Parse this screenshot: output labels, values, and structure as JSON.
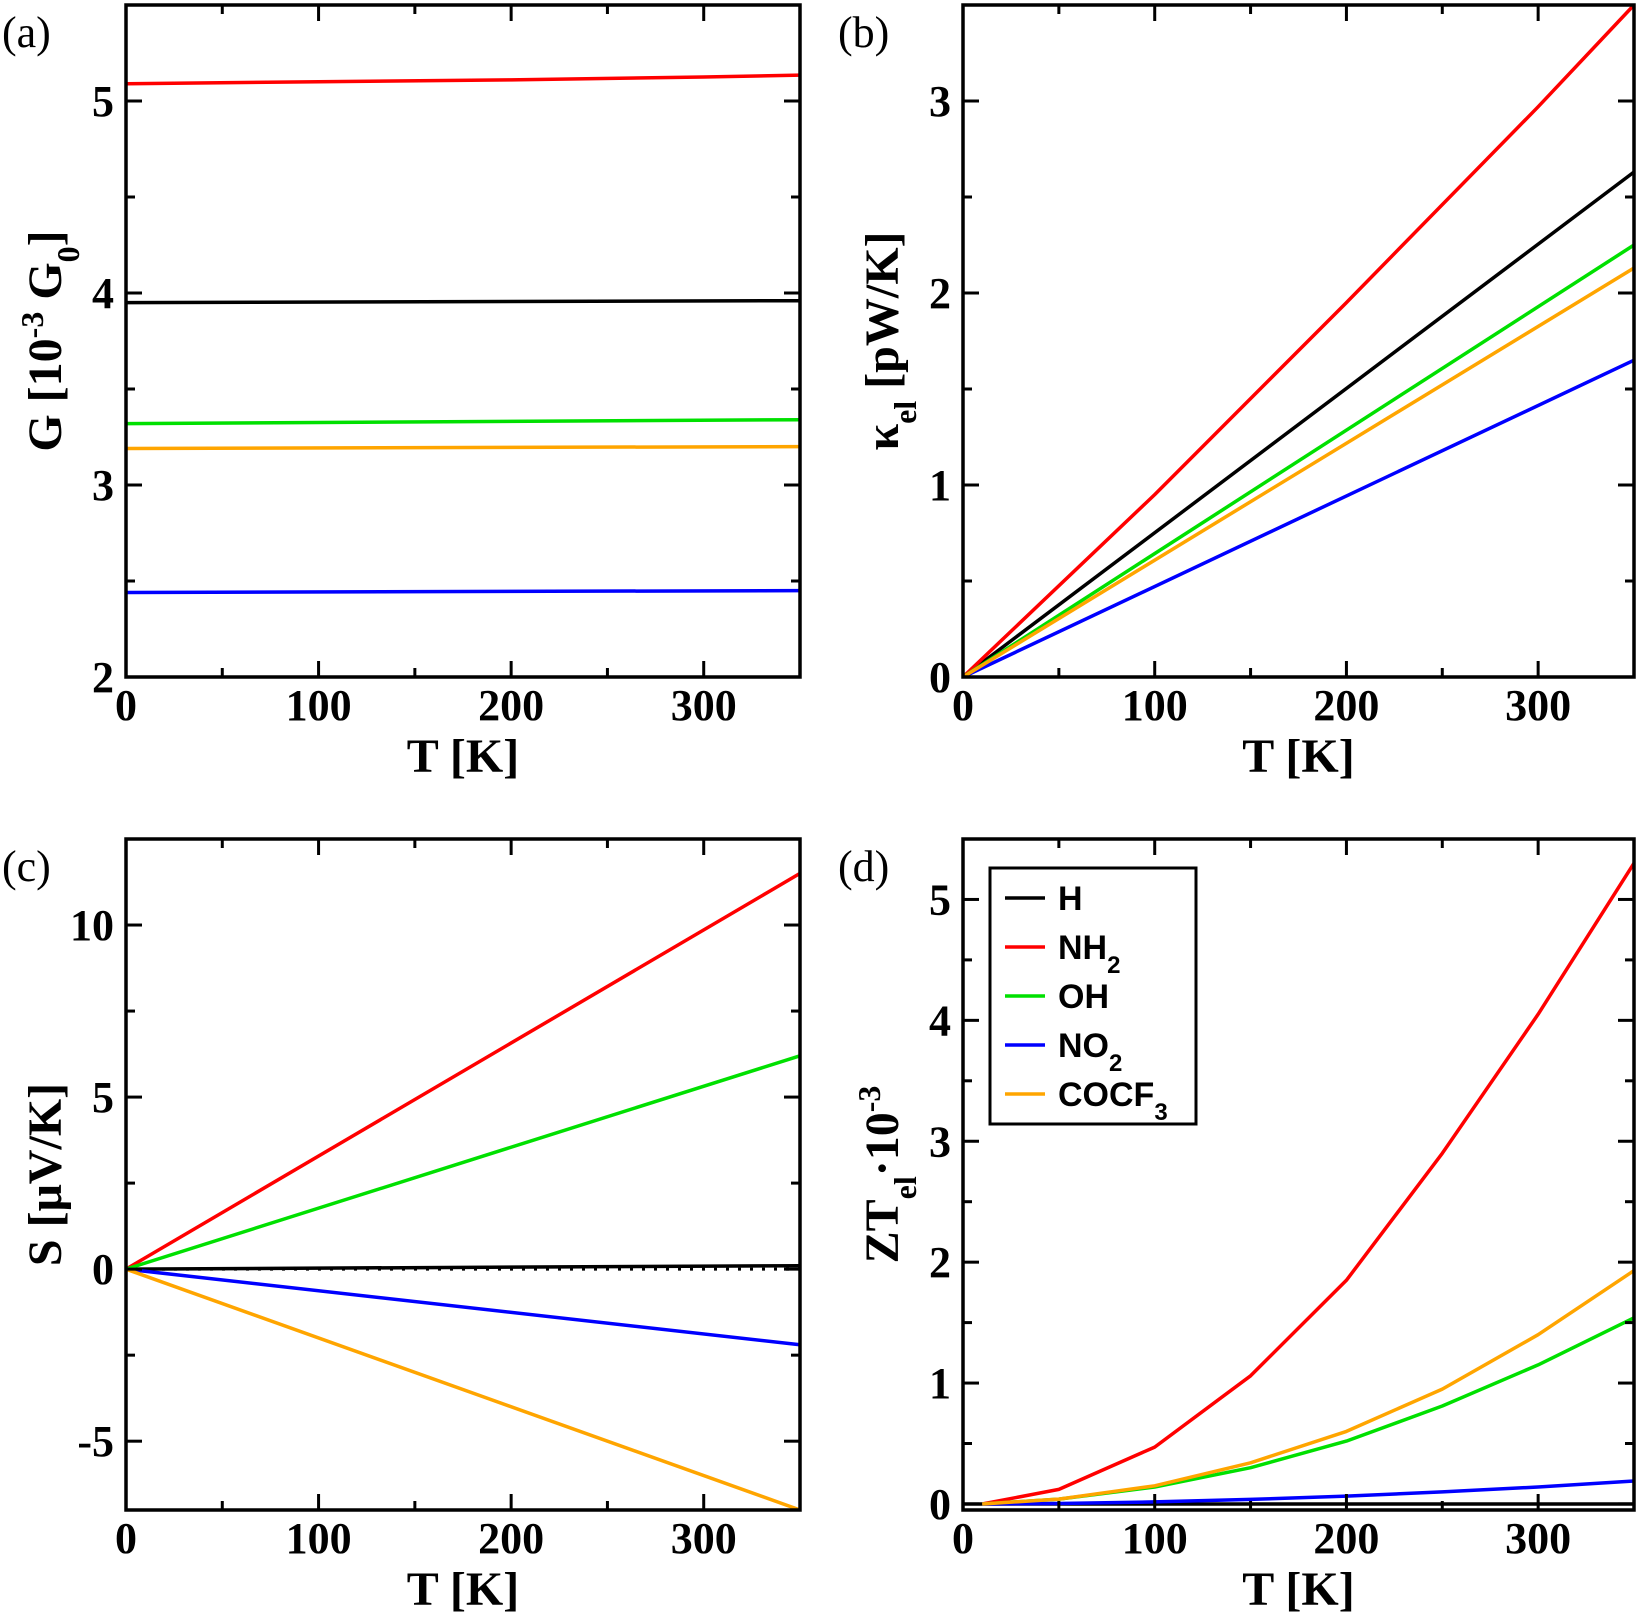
{
  "colors": {
    "H": "#000000",
    "NH2": "#ff0000",
    "OH": "#00e000",
    "NO2": "#0000ff",
    "COCF3": "#ffa500"
  },
  "legend": {
    "entries": [
      {
        "key": "H",
        "label": "H",
        "sub": ""
      },
      {
        "key": "NH2",
        "label": "NH",
        "sub": "2"
      },
      {
        "key": "OH",
        "label": "OH",
        "sub": ""
      },
      {
        "key": "NO2",
        "label": "NO",
        "sub": "2"
      },
      {
        "key": "COCF3",
        "label": "COCF",
        "sub": "3"
      }
    ]
  },
  "chart_data": [
    {
      "id": "a",
      "type": "line",
      "panel_label": "(a)",
      "xlabel": "T [K]",
      "ylabel": {
        "main": "G [10",
        "sup": "-3",
        "mid": " G",
        "sub": "0",
        "end": "]"
      },
      "xlim": [
        0,
        350
      ],
      "ylim": [
        2,
        5.5
      ],
      "xticks": [
        0,
        100,
        200,
        300
      ],
      "xtick_labels": [
        "0",
        "100",
        "200",
        "300"
      ],
      "yticks": [
        2,
        3,
        4,
        5
      ],
      "ytick_labels": [
        "2",
        "3",
        "4",
        "5"
      ],
      "series": [
        {
          "name": "H",
          "x": [
            0,
            350
          ],
          "y": [
            3.95,
            3.96
          ]
        },
        {
          "name": "NH2",
          "x": [
            0,
            100,
            200,
            300,
            350
          ],
          "y": [
            5.09,
            5.1,
            5.11,
            5.125,
            5.135
          ]
        },
        {
          "name": "OH",
          "x": [
            0,
            350
          ],
          "y": [
            3.32,
            3.34
          ]
        },
        {
          "name": "NO2",
          "x": [
            0,
            350
          ],
          "y": [
            2.44,
            2.45
          ]
        },
        {
          "name": "COCF3",
          "x": [
            0,
            350
          ],
          "y": [
            3.19,
            3.2
          ]
        }
      ]
    },
    {
      "id": "b",
      "type": "line",
      "panel_label": "(b)",
      "xlabel": "T [K]",
      "ylabel": {
        "main": "κ",
        "sub": "el",
        "end": " [pW/K]"
      },
      "xlim": [
        0,
        350
      ],
      "ylim": [
        0,
        3.5
      ],
      "xticks": [
        0,
        100,
        200,
        300
      ],
      "xtick_labels": [
        "0",
        "100",
        "200",
        "300"
      ],
      "yticks": [
        0,
        1,
        2,
        3
      ],
      "ytick_labels": [
        "0",
        "1",
        "2",
        "3"
      ],
      "series": [
        {
          "name": "H",
          "x": [
            0,
            350
          ],
          "y": [
            0,
            2.63
          ]
        },
        {
          "name": "NH2",
          "x": [
            0,
            100,
            200,
            300,
            350
          ],
          "y": [
            0,
            0.95,
            1.95,
            2.97,
            3.5
          ]
        },
        {
          "name": "OH",
          "x": [
            0,
            350
          ],
          "y": [
            0,
            2.25
          ]
        },
        {
          "name": "NO2",
          "x": [
            0,
            350
          ],
          "y": [
            0,
            1.65
          ]
        },
        {
          "name": "COCF3",
          "x": [
            0,
            350
          ],
          "y": [
            0,
            2.13
          ]
        }
      ]
    },
    {
      "id": "c",
      "type": "line",
      "panel_label": "(c)",
      "xlabel": "T [K]",
      "ylabel": {
        "main": "S [μV/K]"
      },
      "xlim": [
        0,
        350
      ],
      "ylim": [
        -7,
        12.5
      ],
      "xticks": [
        0,
        100,
        200,
        300
      ],
      "xtick_labels": [
        "0",
        "100",
        "200",
        "300"
      ],
      "yticks": [
        -5,
        0,
        5,
        10
      ],
      "ytick_labels": [
        "-5",
        "0",
        "5",
        "10"
      ],
      "zero_line": true,
      "series": [
        {
          "name": "H",
          "x": [
            0,
            350
          ],
          "y": [
            0,
            0.1
          ]
        },
        {
          "name": "NH2",
          "x": [
            0,
            350
          ],
          "y": [
            0,
            11.5
          ]
        },
        {
          "name": "OH",
          "x": [
            0,
            350
          ],
          "y": [
            0,
            6.2
          ]
        },
        {
          "name": "NO2",
          "x": [
            0,
            350
          ],
          "y": [
            0,
            -2.2
          ]
        },
        {
          "name": "COCF3",
          "x": [
            0,
            350
          ],
          "y": [
            0,
            -7.0
          ]
        }
      ]
    },
    {
      "id": "d",
      "type": "line",
      "panel_label": "(d)",
      "xlabel": "T [K]",
      "ylabel": {
        "main": "ZT",
        "sub": "el",
        "end": "·10",
        "sup": "-3"
      },
      "xlim": [
        0,
        350
      ],
      "ylim": [
        -0.05,
        5.5
      ],
      "xticks": [
        0,
        100,
        200,
        300
      ],
      "xtick_labels": [
        "0",
        "100",
        "200",
        "300"
      ],
      "yticks": [
        0,
        1,
        2,
        3,
        4,
        5
      ],
      "ytick_labels": [
        "0",
        "1",
        "2",
        "3",
        "4",
        "5"
      ],
      "legend_position": "top-left",
      "series": [
        {
          "name": "H",
          "x": [
            0,
            350
          ],
          "y": [
            0,
            0
          ]
        },
        {
          "name": "NH2",
          "x": [
            10,
            50,
            100,
            150,
            200,
            250,
            300,
            350
          ],
          "y": [
            0,
            0.12,
            0.47,
            1.06,
            1.85,
            2.9,
            4.05,
            5.3
          ]
        },
        {
          "name": "OH",
          "x": [
            10,
            50,
            100,
            150,
            200,
            250,
            300,
            350
          ],
          "y": [
            0,
            0.04,
            0.14,
            0.3,
            0.52,
            0.81,
            1.15,
            1.54
          ]
        },
        {
          "name": "NO2",
          "x": [
            10,
            50,
            100,
            150,
            200,
            250,
            300,
            350
          ],
          "y": [
            0,
            0.004,
            0.017,
            0.038,
            0.065,
            0.1,
            0.14,
            0.19
          ]
        },
        {
          "name": "COCF3",
          "x": [
            10,
            50,
            100,
            150,
            200,
            250,
            300,
            350
          ],
          "y": [
            0,
            0.04,
            0.15,
            0.34,
            0.6,
            0.95,
            1.4,
            1.93
          ]
        }
      ]
    }
  ]
}
